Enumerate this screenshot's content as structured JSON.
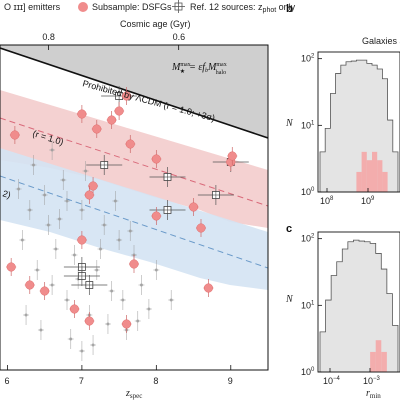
{
  "legend": {
    "emitters_label": "O ɪɪɪ] emitters",
    "dsfg_label": "Subsample: DSFGs",
    "ref12_label": "Ref. 12 sources: z",
    "ref12_sub": "phot",
    "ref12_tail": " only"
  },
  "annotations": {
    "prohibited": "Prohibited by ΛCDM (r = 1.0; +3σ)",
    "r10": "(r = 1.0)",
    "r02": "2)",
    "mstar_eq_main": "M",
    "mstar_eq_full": "= εf",
    "mstar_eq_tail": "M",
    "mstar_sup": "max",
    "mstar_sub_star": "★",
    "fb_sub": "b",
    "halo_sub": "halo"
  },
  "panel_b": {
    "letter": "b",
    "title": "Galaxies a",
    "ylabel": "N"
  },
  "panel_c": {
    "letter": "c",
    "ylabel": "N",
    "xlabel_main": "r",
    "xlabel_sub": "min"
  },
  "colors": {
    "dsfg": "#f08c8c",
    "grey_points": "#9a9a9a",
    "pink_band": "#f3cccc",
    "blue_band": "#d4e3f3",
    "pink_line": "#d96a7a",
    "blue_line": "#6a9ac9",
    "prohibited_fill": "#cfcfcf",
    "hist_grey": "#e4e4e4",
    "hist_pink": "#f4a6a6"
  },
  "chart_data": [
    {
      "type": "scatter",
      "panel": "a",
      "xlabel": "z",
      "xlabel_sub": "spec",
      "top_axis_label": "Cosmic age (Gyr)",
      "x_ticks": [
        "6",
        "7",
        "8",
        "9"
      ],
      "top_ticks": [
        "0.8",
        "0.6"
      ],
      "xlim": [
        5.9,
        9.5
      ],
      "series": [
        {
          "name": "Subsample: DSFGs",
          "points": [
            [
              6.1,
              0.3
            ],
            [
              7.2,
              0.32
            ],
            [
              7.4,
              0.35
            ],
            [
              7.5,
              0.38
            ],
            [
              7.6,
              0.43
            ],
            [
              7.0,
              0.37
            ],
            [
              7.65,
              0.27
            ],
            [
              8.0,
              0.22
            ],
            [
              7.15,
              0.13
            ],
            [
              7.1,
              0.1
            ],
            [
              8.5,
              0.06
            ],
            [
              8.0,
              0.03
            ],
            [
              8.6,
              -0.01
            ],
            [
              7.0,
              -0.05
            ],
            [
              7.7,
              -0.13
            ],
            [
              7.1,
              -0.32
            ],
            [
              7.6,
              -0.33
            ],
            [
              6.05,
              -0.14
            ],
            [
              6.3,
              -0.2
            ],
            [
              6.5,
              -0.22
            ],
            [
              6.9,
              -0.28
            ],
            [
              8.7,
              -0.21
            ],
            [
              9.0,
              0.21
            ],
            [
              9.02,
              0.23
            ]
          ]
        },
        {
          "name": "Ref. 12 sources: zphot only",
          "points": [
            [
              7.5,
              0.43
            ],
            [
              7.3,
              0.2
            ],
            [
              8.15,
              0.16
            ],
            [
              8.8,
              0.1
            ],
            [
              8.15,
              0.05
            ],
            [
              9.0,
              0.21
            ],
            [
              7.0,
              -0.14
            ],
            [
              7.0,
              -0.17
            ],
            [
              7.1,
              -0.2
            ]
          ]
        },
        {
          "name": "O ɪɪɪ] emitters",
          "points": [
            [
              6.2,
              -0.05
            ],
            [
              6.3,
              0.05
            ],
            [
              6.4,
              -0.15
            ],
            [
              6.5,
              0.1
            ],
            [
              6.6,
              -0.2
            ],
            [
              6.7,
              0.02
            ],
            [
              6.8,
              -0.25
            ],
            [
              6.9,
              -0.1
            ],
            [
              7.0,
              0.05
            ],
            [
              7.1,
              -0.3
            ],
            [
              7.2,
              -0.15
            ],
            [
              7.3,
              0.0
            ],
            [
              7.4,
              -0.22
            ],
            [
              7.5,
              -0.05
            ],
            [
              7.6,
              -0.35
            ],
            [
              7.7,
              -0.1
            ],
            [
              7.8,
              -0.2
            ],
            [
              7.9,
              -0.28
            ],
            [
              8.0,
              -0.15
            ],
            [
              8.2,
              -0.25
            ],
            [
              6.15,
              0.12
            ],
            [
              6.25,
              -0.3
            ],
            [
              6.45,
              -0.35
            ],
            [
              6.55,
              0.0
            ],
            [
              6.65,
              -0.08
            ],
            [
              6.75,
              0.15
            ],
            [
              6.85,
              -0.38
            ],
            [
              6.95,
              -0.18
            ],
            [
              7.05,
              0.18
            ],
            [
              7.15,
              -0.4
            ],
            [
              7.25,
              -0.08
            ],
            [
              7.35,
              -0.33
            ],
            [
              7.45,
              0.08
            ],
            [
              7.55,
              -0.25
            ],
            [
              7.65,
              -0.02
            ],
            [
              7.75,
              -0.32
            ],
            [
              6.35,
              0.2
            ],
            [
              6.6,
              0.25
            ],
            [
              6.8,
              0.08
            ],
            [
              7.0,
              -0.42
            ]
          ]
        }
      ]
    },
    {
      "type": "bar",
      "panel": "b",
      "title": "Galaxies a",
      "ylabel": "N",
      "x_ticks": [
        "10",
        "10"
      ],
      "x_tick_exps": [
        "8",
        "9"
      ],
      "y_ticks": [
        "10",
        "10",
        "10"
      ],
      "y_tick_exps": [
        "2",
        "1",
        "0"
      ],
      "series": [
        {
          "name": "all",
          "values": [
            4,
            9,
            30,
            60,
            80,
            90,
            92,
            95,
            95,
            85,
            80,
            70,
            50,
            12,
            4
          ]
        },
        {
          "name": "DSFG",
          "values": [
            0,
            0,
            1,
            0,
            0,
            0,
            1,
            2,
            4,
            3,
            4,
            3,
            2,
            1,
            0
          ]
        }
      ]
    },
    {
      "type": "bar",
      "panel": "c",
      "ylabel": "N",
      "x_ticks": [
        "10",
        "10"
      ],
      "x_tick_exps": [
        "−4",
        "−3"
      ],
      "y_ticks": [
        "10",
        "10",
        "10"
      ],
      "y_tick_exps": [
        "2",
        "1",
        "0"
      ],
      "series": [
        {
          "name": "all",
          "values": [
            4,
            12,
            28,
            45,
            70,
            90,
            95,
            92,
            90,
            85,
            60,
            35,
            15,
            5
          ]
        },
        {
          "name": "DSFG",
          "values": [
            0,
            0,
            0,
            0,
            0,
            0,
            1,
            0,
            1,
            2,
            3,
            2,
            1,
            0
          ]
        }
      ]
    }
  ]
}
